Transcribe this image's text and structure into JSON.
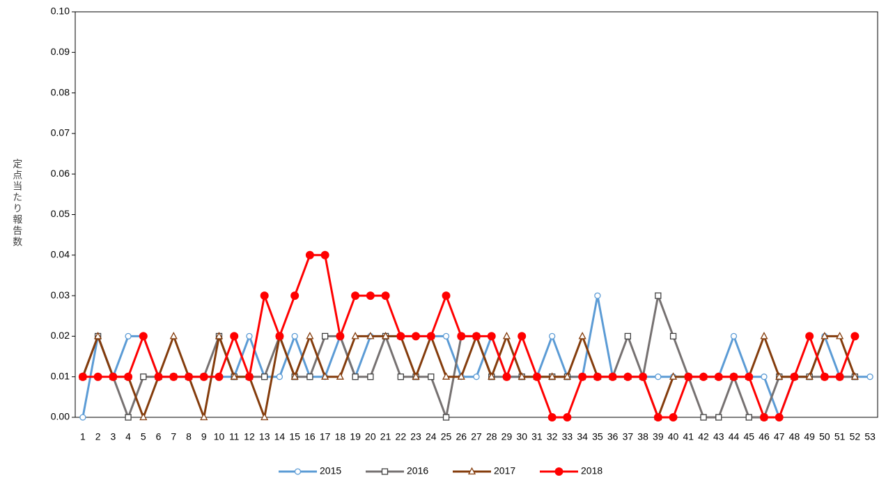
{
  "chart_data": {
    "type": "line",
    "y_label": "定点当たり報告数",
    "categories": [
      "1",
      "2",
      "3",
      "4",
      "5",
      "6",
      "7",
      "8",
      "9",
      "10",
      "11",
      "12",
      "13",
      "14",
      "15",
      "16",
      "17",
      "18",
      "19",
      "20",
      "21",
      "22",
      "23",
      "24",
      "25",
      "26",
      "27",
      "28",
      "29",
      "30",
      "31",
      "32",
      "33",
      "34",
      "35",
      "36",
      "37",
      "38",
      "39",
      "40",
      "41",
      "42",
      "43",
      "44",
      "45",
      "46",
      "47",
      "48",
      "49",
      "50",
      "51",
      "52",
      "53"
    ],
    "series": [
      {
        "name": "2015",
        "color": "#5b9bd5",
        "marker": "circle-open",
        "values": [
          0,
          0.02,
          0.01,
          0.02,
          0.02,
          0.01,
          0.01,
          0.01,
          0.01,
          0.01,
          0.01,
          0.02,
          0.01,
          0.01,
          0.02,
          0.01,
          0.01,
          0.02,
          0.01,
          0.02,
          0.02,
          0.02,
          0.02,
          0.02,
          0.02,
          0.01,
          0.01,
          0.02,
          0.01,
          0.01,
          0.01,
          0.02,
          0.01,
          0.01,
          0.03,
          0.01,
          0.01,
          0.01,
          0.01,
          0.01,
          0.01,
          0.01,
          0.01,
          0.02,
          0.01,
          0.01,
          0,
          0.01,
          0.01,
          0.02,
          0.01,
          0.01,
          0.01
        ]
      },
      {
        "name": "2016",
        "color": "#767171",
        "marker": "square-open",
        "values": [
          0.01,
          0.02,
          0.01,
          0,
          0.01,
          0.01,
          0.01,
          0.01,
          0.01,
          0.02,
          0.01,
          0.01,
          0.01,
          0.02,
          0.01,
          0.01,
          0.02,
          0.02,
          0.01,
          0.01,
          0.02,
          0.01,
          0.01,
          0.01,
          0,
          0.02,
          0.02,
          0.01,
          0.01,
          0.01,
          0.01,
          0.01,
          0.01,
          0.01,
          0.01,
          0.01,
          0.02,
          0.01,
          0.03,
          0.02,
          0.01,
          0,
          0,
          0.01,
          0,
          0,
          0.01,
          0.01,
          0.01,
          0.01,
          0.01,
          0.01,
          null
        ]
      },
      {
        "name": "2017",
        "color": "#843c0c",
        "marker": "triangle-open",
        "values": [
          0.01,
          0.02,
          0.01,
          0.01,
          0,
          0.01,
          0.02,
          0.01,
          0,
          0.02,
          0.01,
          0.01,
          0,
          0.02,
          0.01,
          0.02,
          0.01,
          0.01,
          0.02,
          0.02,
          0.02,
          0.02,
          0.01,
          0.02,
          0.01,
          0.01,
          0.02,
          0.01,
          0.02,
          0.01,
          0.01,
          0.01,
          0.01,
          0.02,
          0.01,
          0.01,
          0.01,
          0.01,
          0,
          0.01,
          0.01,
          0.01,
          0.01,
          0.01,
          0.01,
          0.02,
          0.01,
          0.01,
          0.01,
          0.02,
          0.02,
          0.01,
          null
        ]
      },
      {
        "name": "2018",
        "color": "#ff0000",
        "marker": "circle-filled",
        "values": [
          0.01,
          0.01,
          0.01,
          0.01,
          0.02,
          0.01,
          0.01,
          0.01,
          0.01,
          0.01,
          0.02,
          0.01,
          0.03,
          0.02,
          0.03,
          0.04,
          0.04,
          0.02,
          0.03,
          0.03,
          0.03,
          0.02,
          0.02,
          0.02,
          0.03,
          0.02,
          0.02,
          0.02,
          0.01,
          0.02,
          0.01,
          0,
          0,
          0.01,
          0.01,
          0.01,
          0.01,
          0.01,
          0,
          0,
          0.01,
          0.01,
          0.01,
          0.01,
          0.01,
          0,
          0,
          0.01,
          0.02,
          0.01,
          0.01,
          0.02,
          null
        ]
      }
    ],
    "ylim": [
      0,
      0.1
    ],
    "yticks": [
      {
        "value": 0,
        "label": "0.00"
      },
      {
        "value": 0.01,
        "label": "0.01"
      },
      {
        "value": 0.02,
        "label": "0.02"
      },
      {
        "value": 0.03,
        "label": "0.03"
      },
      {
        "value": 0.04,
        "label": "0.04"
      },
      {
        "value": 0.05,
        "label": "0.05"
      },
      {
        "value": 0.06,
        "label": "0.06"
      },
      {
        "value": 0.07,
        "label": "0.07"
      },
      {
        "value": 0.08,
        "label": "0.08"
      },
      {
        "value": 0.09,
        "label": "0.09"
      },
      {
        "value": 0.1,
        "label": "0.10"
      }
    ],
    "legend": "bottom"
  }
}
